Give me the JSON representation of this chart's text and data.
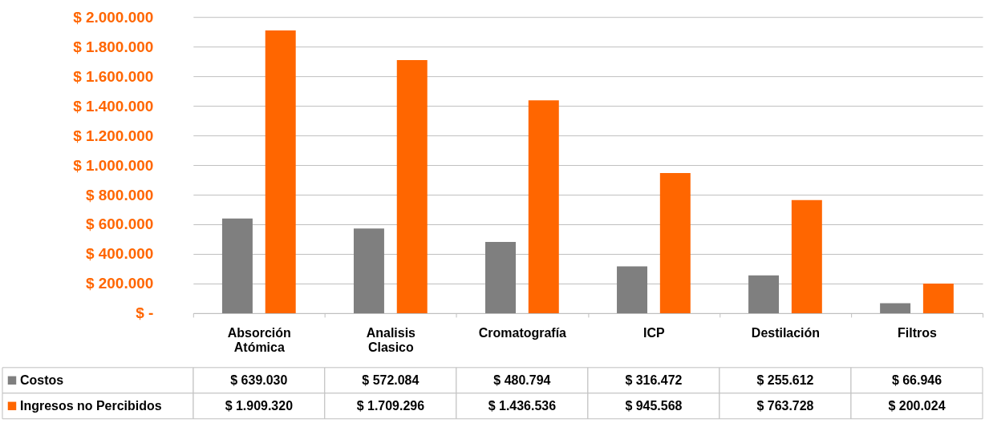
{
  "chart_data": {
    "type": "bar",
    "categories": [
      "Absorción Atómica",
      "Analisis Clasico",
      "Cromatografía",
      "ICP",
      "Destilación",
      "Filtros"
    ],
    "series": [
      {
        "name": "Costos",
        "color": "#7f7f7f",
        "values": [
          639030,
          572084,
          480794,
          316472,
          255612,
          66946
        ],
        "value_labels": [
          "$ 639.030",
          "$ 572.084",
          "$ 480.794",
          "$ 316.472",
          "$ 255.612",
          "$ 66.946"
        ]
      },
      {
        "name": "Ingresos no Percibidos",
        "color": "#ff6600",
        "values": [
          1909320,
          1709296,
          1436536,
          945568,
          763728,
          200024
        ],
        "value_labels": [
          "$ 1.909.320",
          "$ 1.709.296",
          "$ 1.436.536",
          "$ 945.568",
          "$ 763.728",
          "$ 200.024"
        ]
      }
    ],
    "ylim": [
      0,
      2000000
    ],
    "yticks": [
      {
        "value": 0,
        "label": "$ -"
      },
      {
        "value": 200000,
        "label": "$ 200.000"
      },
      {
        "value": 400000,
        "label": "$ 400.000"
      },
      {
        "value": 600000,
        "label": "$ 600.000"
      },
      {
        "value": 800000,
        "label": "$ 800.000"
      },
      {
        "value": 1000000,
        "label": "$ 1.000.000"
      },
      {
        "value": 1200000,
        "label": "$ 1.200.000"
      },
      {
        "value": 1400000,
        "label": "$ 1.400.000"
      },
      {
        "value": 1600000,
        "label": "$ 1.600.000"
      },
      {
        "value": 1800000,
        "label": "$ 1.800.000"
      },
      {
        "value": 2000000,
        "label": "$ 2.000.000"
      }
    ],
    "grid": true,
    "legend": "bottom"
  }
}
